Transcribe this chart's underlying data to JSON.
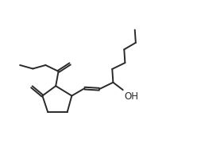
{
  "bg_color": "#ffffff",
  "line_color": "#2a2a2a",
  "lw": 1.4,
  "oh_fontsize": 8.5,
  "xlim": [
    0,
    11
  ],
  "ylim": [
    0,
    8
  ]
}
